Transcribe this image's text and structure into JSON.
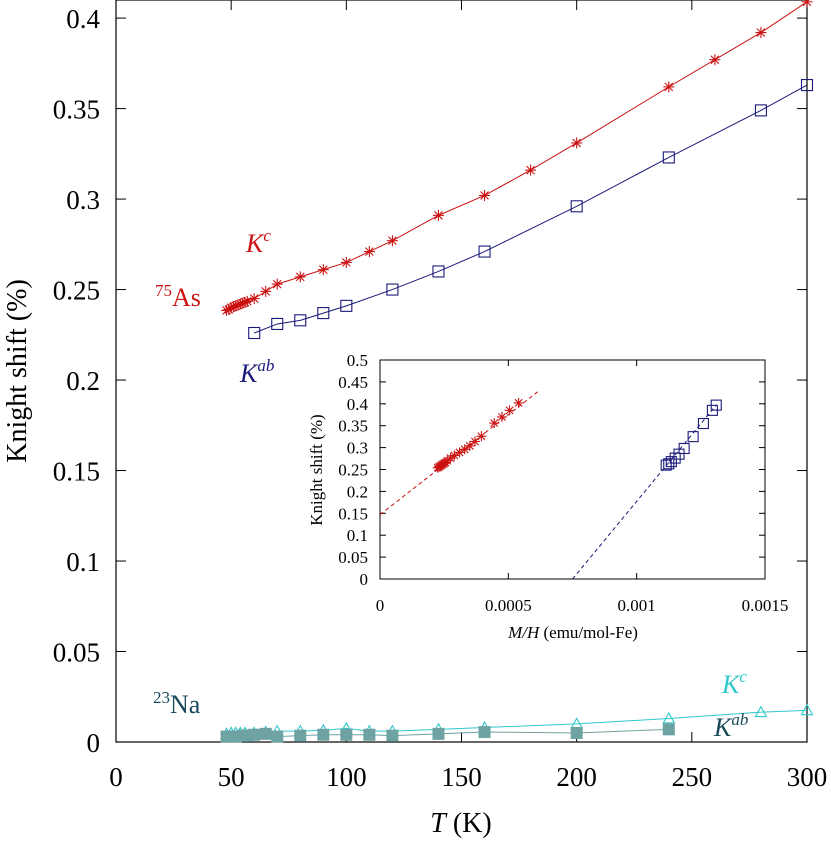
{
  "chart_data": [
    {
      "type": "line",
      "id": "main",
      "xlabel_var": "T",
      "xlabel_unit": " (K)",
      "ylabel": "Knight shift (%)",
      "xlim": [
        0,
        300
      ],
      "ylim": [
        0,
        0.41
      ],
      "x_ticks": [
        "0",
        "50",
        "100",
        "150",
        "200",
        "250",
        "300"
      ],
      "y_ticks": [
        "0",
        "0.05",
        "0.1",
        "0.15",
        "0.2",
        "0.25",
        "0.3",
        "0.35",
        "0.4"
      ],
      "series": [
        {
          "name": "75As K^c",
          "color": "#cc1111",
          "marker": "star",
          "x": [
            48,
            49,
            50,
            51,
            52,
            53,
            54,
            55,
            56,
            57,
            60,
            65,
            70,
            80,
            90,
            100,
            110,
            120,
            140,
            160,
            180,
            200,
            240,
            260,
            280,
            300
          ],
          "y": [
            0.2385,
            0.239,
            0.24,
            0.2405,
            0.241,
            0.2415,
            0.242,
            0.2425,
            0.243,
            0.2435,
            0.245,
            0.249,
            0.253,
            0.257,
            0.261,
            0.265,
            0.271,
            0.277,
            0.291,
            0.302,
            0.316,
            0.331,
            0.362,
            0.377,
            0.392,
            0.409
          ]
        },
        {
          "name": "75As K^ab",
          "color": "#1a1a7a",
          "marker": "open-square",
          "x": [
            60,
            70,
            80,
            90,
            100,
            120,
            140,
            160,
            200,
            240,
            280,
            300
          ],
          "y": [
            0.226,
            0.231,
            0.233,
            0.237,
            0.241,
            0.25,
            0.26,
            0.271,
            0.296,
            0.323,
            0.349,
            0.363
          ]
        },
        {
          "name": "23Na K^c",
          "color": "#30c8cc",
          "marker": "open-triangle",
          "x": [
            48,
            50,
            52,
            54,
            56,
            60,
            65,
            70,
            80,
            90,
            100,
            110,
            120,
            140,
            160,
            200,
            240,
            280,
            300
          ],
          "y": [
            0.0045,
            0.005,
            0.005,
            0.005,
            0.005,
            0.005,
            0.0055,
            0.006,
            0.006,
            0.0065,
            0.0075,
            0.006,
            0.006,
            0.007,
            0.008,
            0.01,
            0.013,
            0.0165,
            0.0175
          ]
        },
        {
          "name": "23Na K^ab",
          "color": "#6fa3a3",
          "marker": "filled-square",
          "x": [
            48,
            50,
            52,
            55,
            57,
            60,
            65,
            70,
            80,
            90,
            100,
            110,
            120,
            140,
            160,
            200,
            240
          ],
          "y": [
            0.003,
            0.003,
            0.003,
            0.0035,
            0.0035,
            0.004,
            0.0045,
            0.003,
            0.0035,
            0.004,
            0.004,
            0.004,
            0.0035,
            0.0045,
            0.0055,
            0.005,
            0.007
          ]
        }
      ]
    },
    {
      "type": "scatter",
      "id": "inset",
      "xlabel_var": "M/H",
      "xlabel_unit": " (emu/mol-Fe)",
      "ylabel": "Knight shift (%)",
      "xlim": [
        0,
        0.0015
      ],
      "ylim": [
        0,
        0.5
      ],
      "x_ticks": [
        "0",
        "0.0005",
        "0.001",
        "0.0015"
      ],
      "y_ticks": [
        "0",
        "0.05",
        "0.1",
        "0.15",
        "0.2",
        "0.25",
        "0.3",
        "0.35",
        "0.4",
        "0.45",
        "0.5"
      ],
      "series": [
        {
          "name": "K^c",
          "color": "#cc1111",
          "marker": "star",
          "x": [
            0.000225,
            0.00023,
            0.000235,
            0.00024,
            0.000245,
            0.00025,
            0.000255,
            0.000262,
            0.000275,
            0.00029,
            0.00031,
            0.00033,
            0.00035,
            0.00037,
            0.000395,
            0.000445,
            0.000475,
            0.000505,
            0.00054
          ],
          "y": [
            0.254,
            0.256,
            0.258,
            0.26,
            0.262,
            0.264,
            0.266,
            0.27,
            0.276,
            0.282,
            0.289,
            0.296,
            0.304,
            0.314,
            0.326,
            0.356,
            0.37,
            0.385,
            0.402
          ]
        },
        {
          "name": "K^ab",
          "color": "#1a1a7a",
          "marker": "open-square",
          "x": [
            0.001115,
            0.001125,
            0.001135,
            0.00115,
            0.001165,
            0.001185,
            0.00122,
            0.00126,
            0.001295,
            0.00131
          ],
          "y": [
            0.26,
            0.263,
            0.268,
            0.276,
            0.285,
            0.298,
            0.325,
            0.355,
            0.385,
            0.397
          ]
        }
      ],
      "fit_lines": [
        {
          "name": "K^c fit",
          "color": "#cc1111",
          "x": [
            0,
            0.00062
          ],
          "y": [
            0.147,
            0.43
          ]
        },
        {
          "name": "K^ab fit",
          "color": "#1a1a7a",
          "x": [
            0.00075,
            0.00131
          ],
          "y": [
            0,
            0.397
          ]
        }
      ]
    }
  ],
  "annotations": {
    "as_label": {
      "sup": "75",
      "text": "As",
      "color": "#cc1111"
    },
    "as_kc": {
      "text": "K",
      "sup": "c",
      "color": "#cc1111"
    },
    "as_kab": {
      "text": "K",
      "sup": "ab",
      "color": "#1a1a7a"
    },
    "na_label": {
      "sup": "23",
      "text": "Na",
      "color": "#1a4a5a"
    },
    "na_kc": {
      "text": "K",
      "sup": "c",
      "color": "#30c8cc"
    },
    "na_kab": {
      "text": "K",
      "sup": "ab",
      "color": "#1a4a5a"
    }
  }
}
